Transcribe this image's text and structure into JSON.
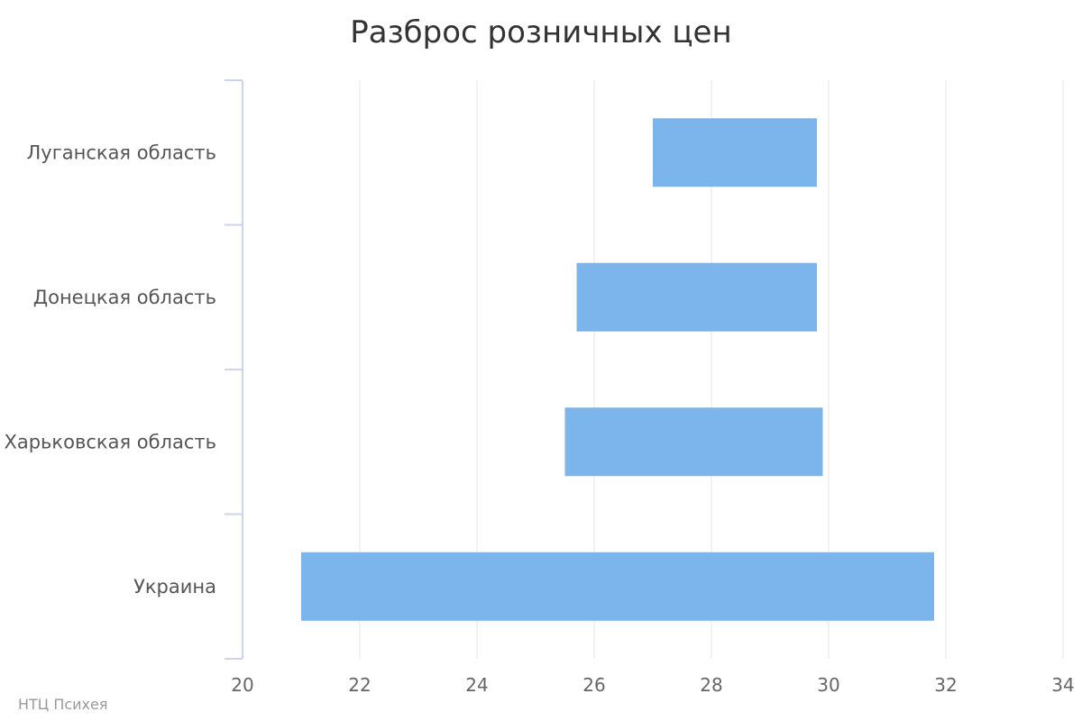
{
  "chart_data": {
    "type": "bar",
    "orientation": "horizontal",
    "subtype": "range",
    "title": "Разброс розничных цен",
    "categories": [
      "Луганская область",
      "Донецкая область",
      "Харьковская область",
      "Украина"
    ],
    "series": [
      {
        "low": [
          27.0,
          25.7,
          25.5,
          21.0
        ],
        "high": [
          29.8,
          29.8,
          29.9,
          31.8
        ]
      }
    ],
    "xlim": [
      20,
      34
    ],
    "xticks": [
      "20",
      "22",
      "24",
      "26",
      "28",
      "30",
      "32",
      "34"
    ],
    "grid": true,
    "legend": "none",
    "bar_color": "#7cb5ec"
  },
  "credits": "НТЦ Психея"
}
